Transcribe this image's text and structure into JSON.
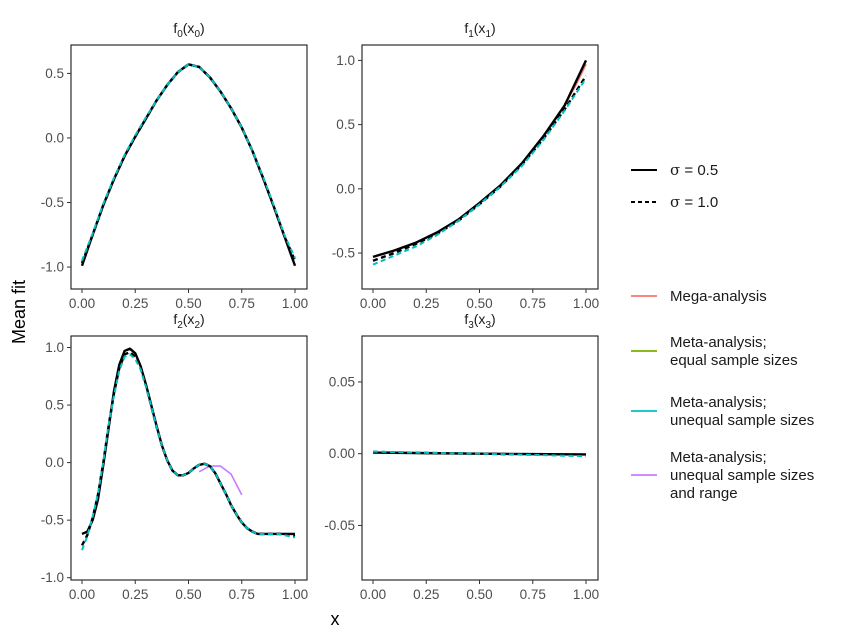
{
  "chart_data": {
    "type": "line",
    "xlabel": "x",
    "ylabel": "Mean fit",
    "legend_linetype": {
      "placement": "right",
      "entries": [
        {
          "label_sym": "σ",
          "label_rest": " = 0.5",
          "dash": "solid"
        },
        {
          "label_sym": "σ",
          "label_rest": " = 1.0",
          "dash": "dashed"
        }
      ]
    },
    "legend_colour": {
      "placement": "right",
      "entries": [
        {
          "lines": [
            "Mega-analysis"
          ],
          "color": "#F8766D"
        },
        {
          "lines": [
            "Meta-analysis;",
            "equal sample sizes"
          ],
          "color": "#7CAE00"
        },
        {
          "lines": [
            "Meta-analysis;",
            "unequal sample sizes"
          ],
          "color": "#00BFC4"
        },
        {
          "lines": [
            "Meta-analysis;",
            "unequal sample sizes",
            "and range"
          ],
          "color": "#C77CFF"
        }
      ]
    },
    "panels": [
      {
        "id": "f0",
        "title_base": "f",
        "title_sub": "0",
        "title_arg": "x",
        "title_arg_sub": "0",
        "xlim": [
          0,
          1
        ],
        "ylim": [
          -1.17,
          0.72
        ],
        "xticks": [
          0,
          0.25,
          0.5,
          0.75,
          1
        ],
        "xtick_labels": [
          "0.00",
          "0.25",
          "0.50",
          "0.75",
          "1.00"
        ],
        "yticks": [
          -1,
          -0.5,
          0,
          0.5
        ],
        "ytick_labels": [
          "-1.0",
          "-0.5",
          "0.0",
          "0.5"
        ],
        "series": [
          {
            "color": "#000000",
            "dash": "solid",
            "width": 2.4,
            "x": [
              0,
              0.05,
              0.1,
              0.15,
              0.2,
              0.25,
              0.3,
              0.35,
              0.4,
              0.45,
              0.5,
              0.55,
              0.6,
              0.65,
              0.7,
              0.75,
              0.8,
              0.85,
              0.9,
              0.95,
              1
            ],
            "y": [
              -0.99,
              -0.75,
              -0.52,
              -0.32,
              -0.14,
              0.01,
              0.15,
              0.29,
              0.41,
              0.51,
              0.57,
              0.55,
              0.47,
              0.36,
              0.23,
              0.08,
              -0.1,
              -0.31,
              -0.53,
              -0.76,
              -0.99
            ]
          },
          {
            "color": "#000000",
            "dash": "dashed",
            "width": 2.4,
            "x": [
              0,
              0.05,
              0.1,
              0.15,
              0.2,
              0.25,
              0.3,
              0.35,
              0.4,
              0.45,
              0.5,
              0.55,
              0.6,
              0.65,
              0.7,
              0.75,
              0.8,
              0.85,
              0.9,
              0.95,
              1
            ],
            "y": [
              -0.97,
              -0.75,
              -0.52,
              -0.32,
              -0.14,
              0.01,
              0.15,
              0.29,
              0.41,
              0.51,
              0.57,
              0.55,
              0.47,
              0.36,
              0.23,
              0.08,
              -0.1,
              -0.31,
              -0.53,
              -0.76,
              -0.95
            ]
          },
          {
            "color": "#00BFC4",
            "dash": "dashed",
            "width": 2.0,
            "x": [
              0,
              0.05,
              0.1,
              0.15,
              0.2,
              0.25,
              0.3,
              0.35,
              0.4,
              0.45,
              0.5,
              0.55,
              0.6,
              0.65,
              0.7,
              0.75,
              0.8,
              0.85,
              0.9,
              0.95,
              1
            ],
            "y": [
              -0.95,
              -0.74,
              -0.51,
              -0.31,
              -0.13,
              0.02,
              0.16,
              0.29,
              0.41,
              0.51,
              0.57,
              0.55,
              0.47,
              0.36,
              0.23,
              0.08,
              -0.1,
              -0.3,
              -0.52,
              -0.75,
              -0.93
            ]
          }
        ]
      },
      {
        "id": "f1",
        "title_base": "f",
        "title_sub": "1",
        "title_arg": "x",
        "title_arg_sub": "1",
        "xlim": [
          0,
          1
        ],
        "ylim": [
          -0.78,
          1.12
        ],
        "xticks": [
          0,
          0.25,
          0.5,
          0.75,
          1
        ],
        "xtick_labels": [
          "0.00",
          "0.25",
          "0.50",
          "0.75",
          "1.00"
        ],
        "yticks": [
          -0.5,
          0,
          0.5,
          1
        ],
        "ytick_labels": [
          "-0.5",
          "0.0",
          "0.5",
          "1.0"
        ],
        "series": [
          {
            "color": "#F8766D",
            "dash": "solid",
            "width": 1.8,
            "x": [
              0.9,
              0.95,
              1
            ],
            "y": [
              0.66,
              0.8,
              0.97
            ]
          },
          {
            "color": "#000000",
            "dash": "solid",
            "width": 2.4,
            "x": [
              0,
              0.1,
              0.2,
              0.3,
              0.4,
              0.5,
              0.6,
              0.7,
              0.8,
              0.9,
              1
            ],
            "y": [
              -0.53,
              -0.48,
              -0.42,
              -0.34,
              -0.24,
              -0.11,
              0.03,
              0.2,
              0.41,
              0.65,
              1.0
            ]
          },
          {
            "color": "#000000",
            "dash": "dashed",
            "width": 2.4,
            "x": [
              0,
              0.1,
              0.2,
              0.3,
              0.4,
              0.5,
              0.6,
              0.7,
              0.8,
              0.9,
              1
            ],
            "y": [
              -0.56,
              -0.5,
              -0.43,
              -0.35,
              -0.25,
              -0.12,
              0.02,
              0.19,
              0.39,
              0.62,
              0.88
            ]
          },
          {
            "color": "#00BFC4",
            "dash": "dashed",
            "width": 2.0,
            "x": [
              0,
              0.1,
              0.2,
              0.3,
              0.4,
              0.5,
              0.6,
              0.7,
              0.8,
              0.9,
              1
            ],
            "y": [
              -0.59,
              -0.52,
              -0.45,
              -0.36,
              -0.25,
              -0.12,
              0.02,
              0.18,
              0.38,
              0.61,
              0.86
            ]
          }
        ]
      },
      {
        "id": "f2",
        "title_base": "f",
        "title_sub": "2",
        "title_arg": "x",
        "title_arg_sub": "2",
        "xlim": [
          0,
          1
        ],
        "ylim": [
          -1.02,
          1.1
        ],
        "xticks": [
          0,
          0.25,
          0.5,
          0.75,
          1
        ],
        "xtick_labels": [
          "0.00",
          "0.25",
          "0.50",
          "0.75",
          "1.00"
        ],
        "yticks": [
          -1,
          -0.5,
          0,
          0.5,
          1
        ],
        "ytick_labels": [
          "-1.0",
          "-0.5",
          "0.0",
          "0.5",
          "1.0"
        ],
        "series": [
          {
            "color": "#C77CFF",
            "dash": "solid",
            "width": 1.6,
            "x": [
              0.55,
              0.6,
              0.65,
              0.7,
              0.75
            ],
            "y": [
              -0.08,
              -0.03,
              -0.03,
              -0.1,
              -0.28
            ]
          },
          {
            "color": "#000000",
            "dash": "solid",
            "width": 2.4,
            "x": [
              0,
              0.025,
              0.05,
              0.075,
              0.1,
              0.125,
              0.15,
              0.175,
              0.2,
              0.225,
              0.25,
              0.275,
              0.3,
              0.325,
              0.35,
              0.375,
              0.4,
              0.425,
              0.45,
              0.475,
              0.5,
              0.525,
              0.55,
              0.575,
              0.6,
              0.625,
              0.65,
              0.675,
              0.7,
              0.725,
              0.75,
              0.775,
              0.8,
              0.825,
              0.85,
              0.875,
              0.9,
              0.925,
              0.95,
              0.975,
              1
            ],
            "y": [
              -0.62,
              -0.6,
              -0.5,
              -0.32,
              -0.02,
              0.3,
              0.62,
              0.85,
              0.97,
              0.99,
              0.95,
              0.84,
              0.68,
              0.5,
              0.32,
              0.15,
              0.02,
              -0.07,
              -0.11,
              -0.11,
              -0.09,
              -0.05,
              -0.02,
              -0.01,
              -0.03,
              -0.09,
              -0.18,
              -0.27,
              -0.37,
              -0.45,
              -0.52,
              -0.57,
              -0.6,
              -0.62,
              -0.62,
              -0.62,
              -0.62,
              -0.62,
              -0.62,
              -0.62,
              -0.62
            ]
          },
          {
            "color": "#000000",
            "dash": "dashed",
            "width": 2.4,
            "x": [
              0,
              0.025,
              0.05,
              0.075,
              0.1,
              0.125,
              0.15,
              0.175,
              0.2,
              0.225,
              0.25,
              0.275,
              0.3,
              0.325,
              0.35,
              0.375,
              0.4,
              0.425,
              0.45,
              0.475,
              0.5,
              0.525,
              0.55,
              0.575,
              0.6,
              0.625,
              0.65,
              0.675,
              0.7,
              0.725,
              0.75,
              0.775,
              0.8,
              0.825,
              0.85,
              0.875,
              0.9,
              0.925,
              0.95,
              0.975,
              1
            ],
            "y": [
              -0.72,
              -0.63,
              -0.48,
              -0.28,
              0.0,
              0.32,
              0.6,
              0.82,
              0.94,
              0.96,
              0.92,
              0.82,
              0.67,
              0.49,
              0.31,
              0.15,
              0.02,
              -0.07,
              -0.11,
              -0.11,
              -0.09,
              -0.05,
              -0.02,
              -0.01,
              -0.03,
              -0.09,
              -0.18,
              -0.27,
              -0.37,
              -0.45,
              -0.52,
              -0.57,
              -0.6,
              -0.62,
              -0.62,
              -0.62,
              -0.62,
              -0.62,
              -0.62,
              -0.63,
              -0.64
            ]
          },
          {
            "color": "#00BFC4",
            "dash": "dashed",
            "width": 2.0,
            "x": [
              0,
              0.025,
              0.05,
              0.075,
              0.1,
              0.125,
              0.15,
              0.175,
              0.2,
              0.225,
              0.25,
              0.275,
              0.3,
              0.325,
              0.35,
              0.375,
              0.4,
              0.425,
              0.45,
              0.475,
              0.5,
              0.525,
              0.55,
              0.575,
              0.6,
              0.625,
              0.65,
              0.675,
              0.7,
              0.725,
              0.75,
              0.775,
              0.8,
              0.825,
              0.85,
              0.875,
              0.9,
              0.925,
              0.95,
              0.975,
              1
            ],
            "y": [
              -0.76,
              -0.64,
              -0.47,
              -0.27,
              0.01,
              0.33,
              0.58,
              0.8,
              0.92,
              0.94,
              0.9,
              0.81,
              0.66,
              0.49,
              0.31,
              0.15,
              0.02,
              -0.07,
              -0.11,
              -0.11,
              -0.09,
              -0.05,
              -0.02,
              -0.01,
              -0.03,
              -0.09,
              -0.18,
              -0.27,
              -0.37,
              -0.45,
              -0.52,
              -0.57,
              -0.6,
              -0.62,
              -0.62,
              -0.62,
              -0.62,
              -0.62,
              -0.63,
              -0.64,
              -0.65
            ]
          }
        ]
      },
      {
        "id": "f3",
        "title_base": "f",
        "title_sub": "3",
        "title_arg": "x",
        "title_arg_sub": "3",
        "xlim": [
          0,
          1
        ],
        "ylim": [
          -0.088,
          0.082
        ],
        "xticks": [
          0,
          0.25,
          0.5,
          0.75,
          1
        ],
        "xtick_labels": [
          "0.00",
          "0.25",
          "0.50",
          "0.75",
          "1.00"
        ],
        "yticks": [
          -0.05,
          0,
          0.05
        ],
        "ytick_labels": [
          "-0.05",
          "0.00",
          "0.05"
        ],
        "series": [
          {
            "color": "#000000",
            "dash": "solid",
            "width": 2.4,
            "x": [
              0,
              0.25,
              0.5,
              0.75,
              1
            ],
            "y": [
              0.0008,
              0.0004,
              0,
              -0.0003,
              -0.0005
            ]
          },
          {
            "color": "#000000",
            "dash": "dashed",
            "width": 2.4,
            "x": [
              0,
              0.25,
              0.5,
              0.75,
              1
            ],
            "y": [
              0.0012,
              0.0005,
              0,
              -0.0006,
              -0.0012
            ]
          },
          {
            "color": "#00BFC4",
            "dash": "dashed",
            "width": 2.0,
            "x": [
              0,
              0.25,
              0.5,
              0.75,
              1
            ],
            "y": [
              0.0015,
              0.0006,
              0,
              -0.0008,
              -0.0018
            ]
          }
        ]
      }
    ]
  }
}
